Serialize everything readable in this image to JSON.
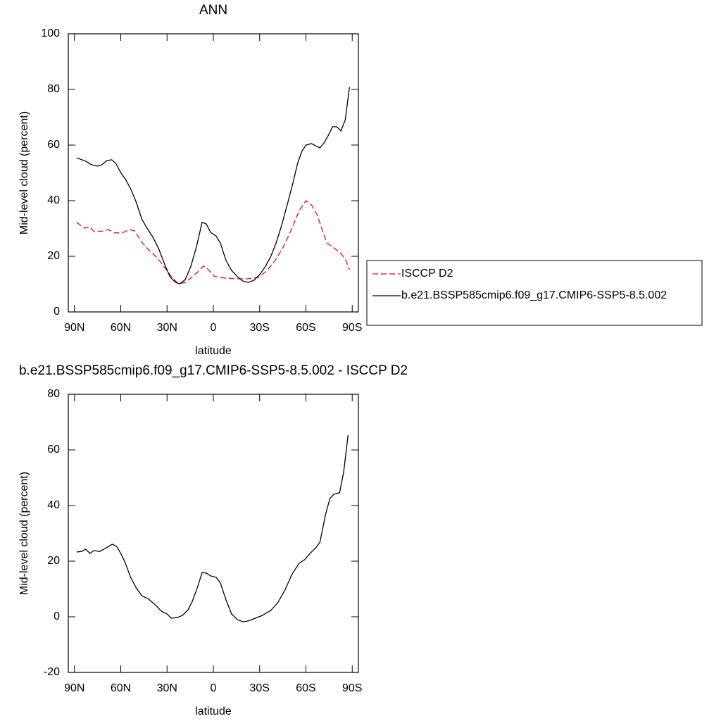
{
  "chart_data": [
    {
      "type": "line",
      "title": "ANN",
      "xlabel": "latitude",
      "ylabel": "Mid-level cloud (percent)",
      "xlim": [
        94,
        -94
      ],
      "xticks": [
        {
          "value": 90,
          "label": "90N"
        },
        {
          "value": 60,
          "label": "60N"
        },
        {
          "value": 30,
          "label": "30N"
        },
        0,
        {
          "value": -30,
          "label": "30S"
        },
        {
          "value": -60,
          "label": "60S"
        },
        {
          "value": -90,
          "label": "90S"
        }
      ],
      "ylim": [
        0,
        100
      ],
      "yticks": [
        0,
        20,
        40,
        60,
        80,
        100
      ],
      "legend": "outside right",
      "series": [
        {
          "name": "ISCCP D2",
          "color": "#ff0000",
          "line_style": "dashed",
          "x": [
            88.6,
            83.6,
            80,
            77.3,
            71.4,
            68.2,
            63.6,
            59.1,
            54.5,
            50.9,
            46.4,
            41.8,
            36.4,
            31.8,
            27.3,
            22.7,
            18.2,
            14.5,
            10,
            6.4,
            3.6,
            -0.9,
            -7.3,
            -14.5,
            -21.8,
            -29.1,
            -34.5,
            -40,
            -45.5,
            -50.9,
            -55.5,
            -60,
            -63.6,
            -67.3,
            -70,
            -73.6,
            -78.2,
            -82.7,
            -85.5,
            -88.2
          ],
          "values": [
            32.2,
            30.1,
            30.6,
            28.9,
            29.1,
            29.6,
            28.4,
            28.4,
            29.6,
            29.1,
            25.1,
            22.3,
            19.5,
            16.2,
            12.7,
            10.1,
            10.6,
            12.2,
            14.4,
            16.5,
            15.4,
            12.7,
            12.2,
            11.9,
            11.9,
            12.4,
            14.7,
            18.5,
            23.5,
            29.9,
            36.2,
            40,
            38.5,
            34.9,
            30.4,
            24.8,
            23,
            21,
            19,
            15.2
          ]
        },
        {
          "name": "b.e21.BSSP585cmip6.f09_g17.CMIP6-SSP5-8.5.002",
          "color": "#000000",
          "line_style": "solid",
          "x": [
            88.6,
            82.7,
            79,
            75,
            72.3,
            69.1,
            65.9,
            63.2,
            60,
            56.8,
            53.6,
            50,
            46.4,
            42.7,
            39.1,
            35.5,
            31.8,
            28.2,
            24.5,
            21.8,
            18.2,
            14.5,
            10.9,
            7.3,
            4.5,
            1.8,
            -1.8,
            -4.5,
            -8.2,
            -11.8,
            -15.5,
            -19.1,
            -22.7,
            -26.4,
            -30,
            -33.6,
            -37.3,
            -40.9,
            -44.5,
            -48.2,
            -51.8,
            -54.5,
            -57.3,
            -60,
            -63.6,
            -66.4,
            -69.1,
            -71.8,
            -74.5,
            -77.3,
            -80,
            -82.7,
            -85.5,
            -88.2
          ],
          "values": [
            55.4,
            54.2,
            52.9,
            52.4,
            52.9,
            54.4,
            54.7,
            53.4,
            50.1,
            47.6,
            44.3,
            39.5,
            33.4,
            29.9,
            26.8,
            22.8,
            17.5,
            12.7,
            10.6,
            10.1,
            11.6,
            16.5,
            23.5,
            32.2,
            31.6,
            28.6,
            27.3,
            24.8,
            18.5,
            14.9,
            12.7,
            11.1,
            10.6,
            11.4,
            13.4,
            16.2,
            20,
            25.1,
            31.6,
            39.2,
            46.8,
            53.2,
            57.7,
            60,
            60.5,
            59.7,
            59,
            60.8,
            63.5,
            66.6,
            66.6,
            65.1,
            69.1,
            80.8
          ]
        }
      ]
    },
    {
      "type": "line",
      "title": "b.e21.BSSP585cmip6.f09_g17.CMIP6-SSP5-8.5.002 - ISCCP D2",
      "xlabel": "latitude",
      "ylabel": "Mid-level cloud (percent)",
      "xlim": [
        94,
        -94
      ],
      "xticks": [
        {
          "value": 90,
          "label": "90N"
        },
        {
          "value": 60,
          "label": "60N"
        },
        {
          "value": 30,
          "label": "30N"
        },
        0,
        {
          "value": -30,
          "label": "30S"
        },
        {
          "value": -60,
          "label": "60S"
        },
        {
          "value": -90,
          "label": "90S"
        }
      ],
      "ylim": [
        -20,
        80
      ],
      "yticks": [
        -20,
        0,
        20,
        40,
        60,
        80
      ],
      "series": [
        {
          "color": "#000000",
          "line_style": "solid",
          "x": [
            88.6,
            85.5,
            82.7,
            80,
            77.3,
            73.6,
            70,
            65.5,
            62.7,
            60,
            57.3,
            53.6,
            50,
            46.4,
            41.8,
            37.3,
            33.6,
            30,
            27.3,
            23.6,
            20,
            16.4,
            13.6,
            10,
            7.3,
            4.5,
            1.8,
            -1.8,
            -4.5,
            -8.2,
            -11.8,
            -15.5,
            -19.1,
            -22.7,
            -27.3,
            -31.8,
            -37.3,
            -41.8,
            -46.4,
            -50.9,
            -55.5,
            -59.1,
            -62.7,
            -66.4,
            -69.1,
            -72.7,
            -75.5,
            -78.2,
            -81.8,
            -84.5,
            -87.3
          ],
          "values": [
            23.3,
            23.5,
            24.3,
            22.8,
            23.8,
            23.5,
            24.6,
            26.1,
            25.3,
            22.8,
            19.7,
            14.2,
            10.4,
            7.6,
            6.3,
            4.1,
            2,
            1,
            -0.5,
            -0.3,
            0.5,
            2.5,
            5.6,
            11.1,
            15.9,
            15.7,
            14.7,
            14.2,
            12.2,
            6.1,
            1,
            -1,
            -1.8,
            -1.5,
            -0.5,
            0.5,
            2.3,
            5.1,
            9.6,
            15.2,
            19.2,
            20.5,
            22.8,
            24.8,
            26.8,
            36.7,
            42.5,
            44.1,
            44.6,
            52.2,
            65.3
          ]
        }
      ]
    }
  ]
}
